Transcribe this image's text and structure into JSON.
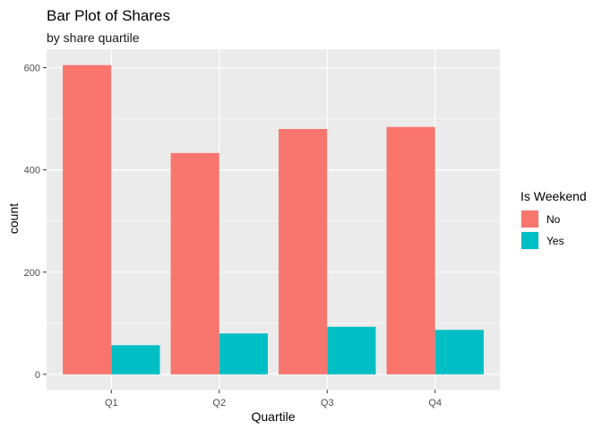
{
  "chart_data": {
    "type": "bar",
    "title": "Bar Plot of Shares",
    "subtitle": "by share quartile",
    "xlabel": "Quartile",
    "ylabel": "count",
    "categories": [
      "Q1",
      "Q2",
      "Q3",
      "Q4"
    ],
    "series": [
      {
        "name": "No",
        "values": [
          605,
          433,
          480,
          484
        ],
        "color": "#F8766D"
      },
      {
        "name": "Yes",
        "values": [
          57,
          80,
          93,
          87
        ],
        "color": "#00BFC4"
      }
    ],
    "ylim": [
      -30,
      636
    ],
    "yticks": [
      0,
      200,
      400,
      600
    ],
    "yticklabels": [
      "0",
      "200",
      "400",
      "600"
    ],
    "grid": true,
    "panel_background": "#EBEBEB",
    "legend": {
      "title": "Is Weekend",
      "placement": "right",
      "items": [
        "No",
        "Yes"
      ]
    }
  }
}
